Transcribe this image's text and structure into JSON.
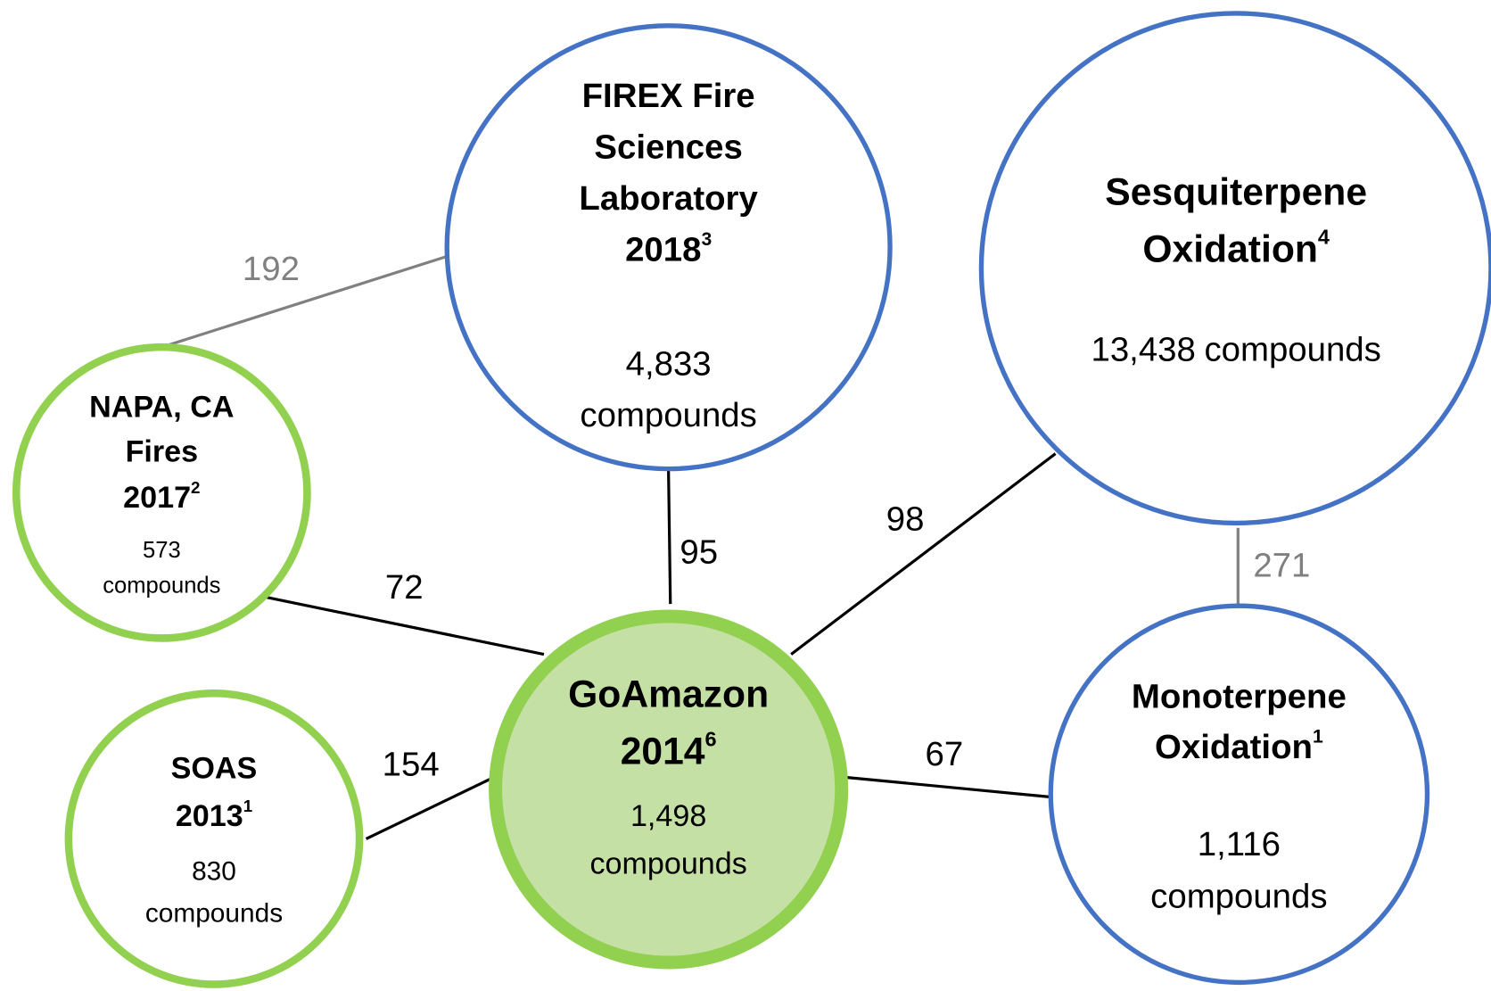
{
  "nodes": [
    {
      "title": [
        "FIREX Fire",
        "Sciences",
        "Laboratory",
        "2018"
      ],
      "superscript": "3",
      "count": "4,833",
      "unit": "compounds",
      "color": "#4472c4"
    },
    {
      "title": [
        "Sesquiterpene",
        "Oxidation"
      ],
      "superscript": "4",
      "count": "13,438",
      "unit": "compounds",
      "color": "#4472c4"
    },
    {
      "title": [
        "NAPA, CA",
        "Fires",
        "2017"
      ],
      "superscript": "2",
      "count": "573",
      "unit": "compounds",
      "color": "#92d050"
    },
    {
      "title": [
        "SOAS",
        "2013"
      ],
      "superscript": "1",
      "count": "830",
      "unit": "compounds",
      "color": "#92d050"
    },
    {
      "title": [
        "GoAmazon",
        "2014"
      ],
      "superscript": "6",
      "count": "1,498",
      "unit": "compounds",
      "color": "#92d050",
      "fill": "#c5e0a5"
    },
    {
      "title": [
        "Monoterpene",
        "Oxidation"
      ],
      "superscript": "1",
      "count": "1,116",
      "unit": "compounds",
      "color": "#4472c4"
    }
  ],
  "edges": [
    {
      "label": 192,
      "color": "#808080"
    },
    {
      "label": 95,
      "color": "#000000"
    },
    {
      "label": 98,
      "color": "#000000"
    },
    {
      "label": 271,
      "color": "#808080"
    },
    {
      "label": 72,
      "color": "#000000"
    },
    {
      "label": 154,
      "color": "#000000"
    },
    {
      "label": 67,
      "color": "#000000"
    }
  ]
}
